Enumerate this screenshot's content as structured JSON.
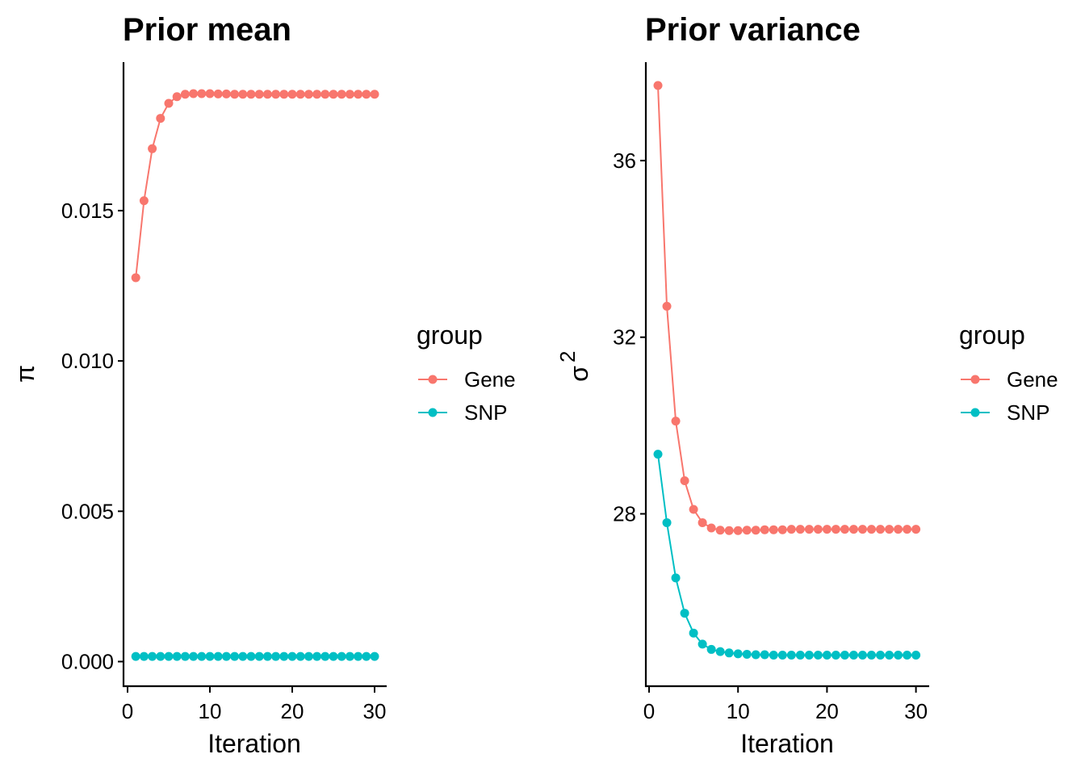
{
  "chart_data": [
    {
      "type": "line",
      "title": "Prior mean",
      "xlabel": "Iteration",
      "ylabel": "π",
      "xlim": [
        0,
        30
      ],
      "ylim": [
        0,
        0.019
      ],
      "x_ticks": [
        "0",
        "10",
        "20",
        "30"
      ],
      "y_ticks": [
        "0.000",
        "0.005",
        "0.010",
        "0.015"
      ],
      "x": [
        1,
        2,
        3,
        4,
        5,
        6,
        7,
        8,
        9,
        10,
        11,
        12,
        13,
        14,
        15,
        16,
        17,
        18,
        19,
        20,
        21,
        22,
        23,
        24,
        25,
        26,
        27,
        28,
        29,
        30
      ],
      "series": [
        {
          "name": "Gene",
          "color": "#F8766D",
          "values": [
            0.01277,
            0.01533,
            0.01706,
            0.01807,
            0.01857,
            0.01879,
            0.01887,
            0.01889,
            0.01889,
            0.01889,
            0.01888,
            0.01888,
            0.01887,
            0.01887,
            0.01887,
            0.01887,
            0.01887,
            0.01887,
            0.01887,
            0.01887,
            0.01887,
            0.01887,
            0.01887,
            0.01887,
            0.01887,
            0.01887,
            0.01887,
            0.01887,
            0.01887,
            0.01887
          ]
        },
        {
          "name": "SNP",
          "color": "#00BFC4",
          "values": [
            0.00017,
            0.00017,
            0.00017,
            0.00017,
            0.00017,
            0.00017,
            0.00017,
            0.00017,
            0.00017,
            0.00017,
            0.00017,
            0.00017,
            0.00017,
            0.00017,
            0.00017,
            0.00017,
            0.00017,
            0.00017,
            0.00017,
            0.00017,
            0.00017,
            0.00017,
            0.00017,
            0.00017,
            0.00017,
            0.00017,
            0.00017,
            0.00017,
            0.00017,
            0.00017
          ]
        }
      ],
      "legend": {
        "title": "group",
        "items": [
          "Gene",
          "SNP"
        ],
        "position": "right"
      },
      "grid": false
    },
    {
      "type": "line",
      "title": "Prior variance",
      "xlabel": "Iteration",
      "ylabel": "σ",
      "ylabel_superscript": "2",
      "xlim": [
        0,
        30
      ],
      "ylim": [
        24.2,
        38.3
      ],
      "x_ticks": [
        "0",
        "10",
        "20",
        "30"
      ],
      "y_ticks": [
        "28",
        "32",
        "36"
      ],
      "x": [
        1,
        2,
        3,
        4,
        5,
        6,
        7,
        8,
        9,
        10,
        11,
        12,
        13,
        14,
        15,
        16,
        17,
        18,
        19,
        20,
        21,
        22,
        23,
        24,
        25,
        26,
        27,
        28,
        29,
        30
      ],
      "series": [
        {
          "name": "Gene",
          "color": "#F8766D",
          "values": [
            37.7,
            32.7,
            30.1,
            28.75,
            28.1,
            27.8,
            27.68,
            27.63,
            27.62,
            27.62,
            27.63,
            27.63,
            27.64,
            27.64,
            27.64,
            27.65,
            27.65,
            27.65,
            27.65,
            27.65,
            27.65,
            27.65,
            27.65,
            27.65,
            27.65,
            27.65,
            27.65,
            27.65,
            27.65,
            27.65
          ]
        },
        {
          "name": "SNP",
          "color": "#00BFC4",
          "values": [
            29.35,
            27.8,
            26.55,
            25.75,
            25.3,
            25.05,
            24.93,
            24.88,
            24.85,
            24.83,
            24.82,
            24.81,
            24.81,
            24.8,
            24.8,
            24.8,
            24.8,
            24.8,
            24.8,
            24.8,
            24.8,
            24.8,
            24.8,
            24.8,
            24.8,
            24.8,
            24.8,
            24.8,
            24.8,
            24.8
          ]
        }
      ],
      "legend": {
        "title": "group",
        "items": [
          "Gene",
          "SNP"
        ],
        "position": "right"
      },
      "grid": false
    }
  ]
}
